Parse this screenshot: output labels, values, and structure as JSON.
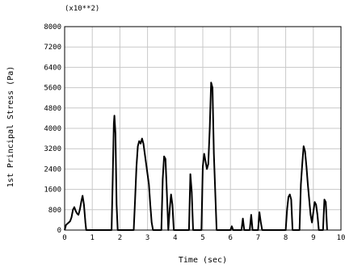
{
  "chart_data": {
    "type": "line",
    "title": "",
    "multiplier_label": "(x10**2)",
    "xlabel": "Time (sec)",
    "ylabel": "1st Principal Stress (Pa)",
    "xlim": [
      0,
      10
    ],
    "ylim": [
      0,
      8000
    ],
    "x_ticks": [
      0,
      1,
      2,
      3,
      4,
      5,
      6,
      7,
      8,
      9,
      10
    ],
    "x_tick_labels": [
      "0",
      "1",
      "2",
      "3",
      "4",
      "5",
      "6",
      "7",
      "8",
      "9",
      "10"
    ],
    "y_ticks": [
      0,
      800,
      1600,
      2400,
      3200,
      4000,
      4800,
      5600,
      6400,
      7200,
      8000
    ],
    "y_tick_labels": [
      "0",
      "800",
      "1600",
      "2400",
      "3200",
      "4000",
      "4800",
      "5600",
      "6400",
      "7200",
      "8000"
    ],
    "grid": true,
    "series": [
      {
        "color": "#000000",
        "x": [
          0,
          0.05,
          0.1,
          0.15,
          0.2,
          0.25,
          0.3,
          0.35,
          0.4,
          0.45,
          0.5,
          0.55,
          0.6,
          0.65,
          0.7,
          0.75,
          0.78,
          0.82,
          1.7,
          1.74,
          1.78,
          1.8,
          1.84,
          1.88,
          1.92,
          2.5,
          2.55,
          2.6,
          2.65,
          2.7,
          2.75,
          2.8,
          2.85,
          2.9,
          2.95,
          3.0,
          3.05,
          3.1,
          3.15,
          3.2,
          3.25,
          3.3,
          3.5,
          3.55,
          3.6,
          3.65,
          3.7,
          3.75,
          3.8,
          3.85,
          3.9,
          3.95,
          4.5,
          4.55,
          4.6,
          4.65,
          4.95,
          5.0,
          5.05,
          5.1,
          5.15,
          5.2,
          5.25,
          5.3,
          5.35,
          5.4,
          5.5,
          6.0,
          6.05,
          6.1,
          6.4,
          6.45,
          6.5,
          6.7,
          6.75,
          6.8,
          7.0,
          7.05,
          7.1,
          7.15,
          8.0,
          8.05,
          8.1,
          8.15,
          8.2,
          8.25,
          8.5,
          8.55,
          8.6,
          8.65,
          8.7,
          8.75,
          8.8,
          8.85,
          8.9,
          8.95,
          9.0,
          9.05,
          9.1,
          9.15,
          9.2,
          9.35,
          9.4,
          9.45,
          9.5
        ],
        "y": [
          0,
          200,
          250,
          300,
          350,
          500,
          800,
          900,
          750,
          650,
          600,
          800,
          1100,
          1350,
          1000,
          300,
          0,
          0,
          0,
          2000,
          4200,
          4500,
          3800,
          1000,
          0,
          0,
          1200,
          2500,
          3300,
          3500,
          3400,
          3600,
          3400,
          3000,
          2600,
          2200,
          1800,
          1000,
          300,
          0,
          0,
          0,
          0,
          2000,
          2900,
          2800,
          1500,
          0,
          800,
          1400,
          1000,
          0,
          0,
          2200,
          1500,
          0,
          0,
          2500,
          3000,
          2700,
          2400,
          2600,
          4000,
          5800,
          5600,
          3000,
          0,
          0,
          150,
          0,
          0,
          450,
          0,
          0,
          600,
          0,
          0,
          700,
          300,
          0,
          0,
          800,
          1300,
          1400,
          1200,
          0,
          0,
          1800,
          2600,
          3300,
          3100,
          2500,
          1800,
          1200,
          600,
          300,
          700,
          1100,
          1000,
          600,
          0,
          0,
          1200,
          1100,
          0
        ]
      }
    ]
  }
}
